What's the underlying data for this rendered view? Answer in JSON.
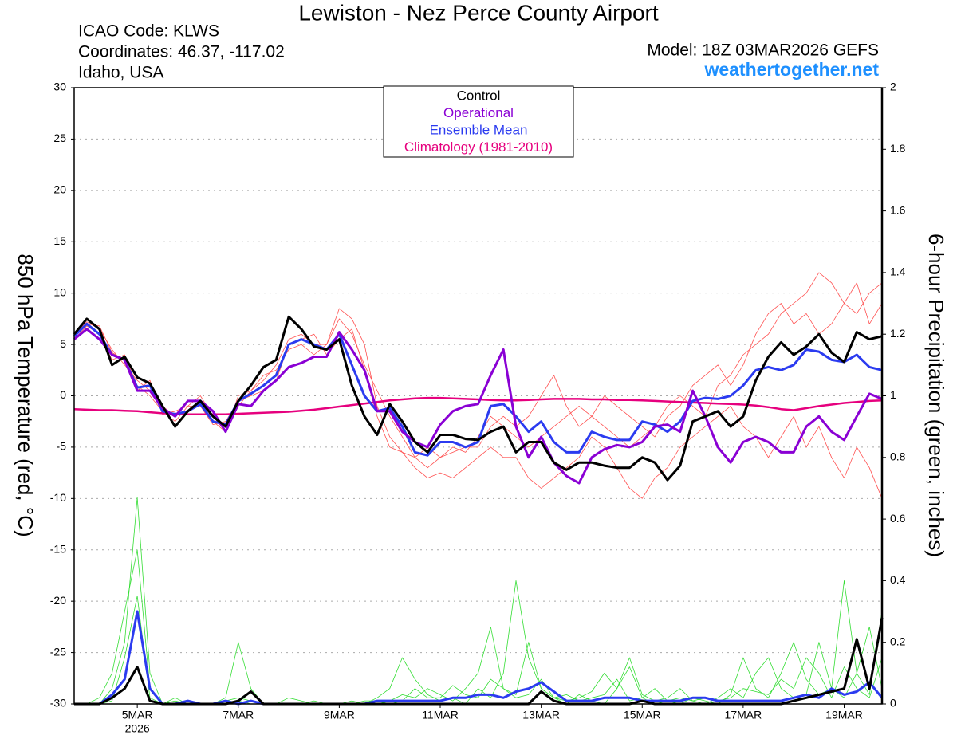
{
  "chart_data": {
    "type": "line",
    "title": "Lewiston - Nez Perce County Airport",
    "info_lines": [
      "ICAO Code: KLWS",
      "Coordinates: 46.37, -117.02",
      "Idaho, USA"
    ],
    "model": "Model: 18Z 03MAR2026 GEFS",
    "website": "weathertogether.net",
    "ylabel": "850 hPa Temperature (red, °C)",
    "y2label": "6-hour Precipitation (green, inches)",
    "year": "2026",
    "categories": [
      null,
      null,
      null,
      null,
      null,
      "5MAR",
      null,
      null,
      null,
      null,
      null,
      null,
      null,
      "7MAR",
      null,
      null,
      null,
      null,
      null,
      null,
      null,
      "9MAR",
      null,
      null,
      null,
      null,
      null,
      null,
      null,
      "11MAR",
      null,
      null,
      null,
      null,
      null,
      null,
      null,
      "13MAR",
      null,
      null,
      null,
      null,
      null,
      null,
      null,
      "15MAR",
      null,
      null,
      null,
      null,
      null,
      null,
      null,
      "17MAR",
      null,
      null,
      null,
      null,
      null,
      null,
      null,
      "19MAR",
      null,
      null,
      null
    ],
    "ylim": [
      -30,
      30
    ],
    "yticks": [
      -30,
      -25,
      -20,
      -15,
      -10,
      -5,
      0,
      5,
      10,
      15,
      20,
      25,
      30
    ],
    "y2lim": [
      0,
      2
    ],
    "y2ticks": [
      0,
      0.2,
      0.4,
      0.6,
      0.8,
      1,
      1.2,
      1.4,
      1.6,
      1.8,
      2
    ],
    "grid": true,
    "legend": "top-center",
    "series": [
      {
        "color": "#ff5050",
        "values": [
          6,
          7.2,
          6.5,
          4.5,
          3,
          1.5,
          0.5,
          -1,
          -2,
          -0.5,
          -0.5,
          -2.5,
          -3.5,
          -1,
          0.5,
          1.5,
          3,
          5.5,
          6,
          5,
          5,
          7.5,
          6,
          3,
          0.5,
          -2,
          -4,
          -6,
          -7,
          -6,
          -5,
          -5.5,
          -4,
          -2,
          -3,
          -4,
          -5,
          -4,
          -3,
          -2,
          -1,
          -2,
          -3,
          -4,
          -5,
          -4,
          -3,
          -1,
          0,
          -1,
          -2,
          1,
          2,
          4,
          5,
          6,
          8,
          9,
          10,
          12,
          11,
          9,
          8,
          10,
          11
        ]
      },
      {
        "color": "#ff5050",
        "values": [
          5.5,
          6.8,
          6,
          3.5,
          4,
          1,
          0,
          -1.5,
          -2.5,
          -1,
          0,
          -2,
          -3.5,
          0,
          0.5,
          2,
          2.5,
          4.5,
          5,
          4,
          5,
          8.5,
          7.5,
          5,
          -1,
          -4,
          -5.5,
          -7,
          -8,
          -7.5,
          -8,
          -7,
          -6,
          -5,
          -6,
          -6,
          -8,
          -9,
          -8,
          -7,
          -6,
          -4,
          -5,
          -7,
          -9,
          -10,
          -8,
          -7,
          -5,
          -4,
          -3,
          -2,
          -1,
          -3,
          -4,
          -6,
          -4,
          -2,
          -5,
          -3,
          -6,
          -8,
          -5,
          -7,
          -10
        ]
      },
      {
        "color": "#ff5050",
        "values": [
          6.2,
          7,
          6.8,
          4.2,
          3.5,
          0.5,
          1.5,
          -1.8,
          -1.5,
          -1,
          -1,
          -2.8,
          -2.5,
          -0.5,
          0,
          0.5,
          1.5,
          5,
          5.5,
          6,
          4,
          5.5,
          6.5,
          2.5,
          -2,
          -5,
          -5.5,
          -6,
          -5,
          -6,
          -5.5,
          -5,
          -5,
          -3,
          -2,
          -3,
          -2,
          0,
          2,
          -1,
          -3,
          -2,
          0,
          -1,
          -2,
          -3,
          -4,
          -2,
          -1,
          1,
          2,
          3,
          1,
          3,
          6,
          8,
          9,
          7,
          8,
          6,
          7,
          9,
          11,
          7,
          9
        ]
      },
      {
        "color": "#33dd33",
        "axis": "y2",
        "values": [
          0,
          0,
          0,
          0.05,
          0.2,
          0.67,
          0.1,
          0,
          0.02,
          0,
          0,
          0,
          0.01,
          0.02,
          0.01,
          0,
          0,
          0,
          0,
          0,
          0,
          0,
          0,
          0,
          0.02,
          0.05,
          0.15,
          0.08,
          0.03,
          0.01,
          0.02,
          0,
          0.05,
          0.02,
          0.1,
          0.4,
          0.15,
          0.05,
          0.02,
          0,
          0.03,
          0.01,
          0,
          0.05,
          0.12,
          0.02,
          0,
          0.01,
          0,
          0.02,
          0.01,
          0,
          0.03,
          0.15,
          0.05,
          0.02,
          0.1,
          0.2,
          0.08,
          0.03,
          0.05,
          0.4,
          0.1,
          0.25,
          0.05
        ]
      },
      {
        "color": "#33dd33",
        "axis": "y2",
        "values": [
          0,
          0,
          0.02,
          0.1,
          0.3,
          0.5,
          0.05,
          0,
          0,
          0.01,
          0,
          0,
          0.02,
          0.2,
          0.05,
          0,
          0,
          0,
          0,
          0.01,
          0,
          0,
          0.01,
          0,
          0,
          0.01,
          0.03,
          0.02,
          0.05,
          0.03,
          0.01,
          0.05,
          0.1,
          0.25,
          0.05,
          0.02,
          0.03,
          0.08,
          0.02,
          0.01,
          0.02,
          0.04,
          0.1,
          0.05,
          0.15,
          0.03,
          0.01,
          0.02,
          0.05,
          0.01,
          0,
          0.02,
          0.05,
          0.02,
          0.1,
          0.15,
          0.05,
          0.02,
          0.03,
          0.2,
          0.05,
          0.02,
          0.1,
          0.03,
          0.3
        ]
      },
      {
        "color": "#33dd33",
        "axis": "y2",
        "values": [
          0,
          0,
          0,
          0.01,
          0.15,
          0.35,
          0.02,
          0,
          0.01,
          0,
          0,
          0,
          0,
          0.01,
          0,
          0,
          0,
          0.02,
          0.01,
          0,
          0,
          0,
          0,
          0.01,
          0.01,
          0,
          0.01,
          0.05,
          0.02,
          0.02,
          0.06,
          0.03,
          0.02,
          0.08,
          0.05,
          0.03,
          0.2,
          0.05,
          0.02,
          0.03,
          0.01,
          0.02,
          0.03,
          0.08,
          0.01,
          0.02,
          0.05,
          0.01,
          0.02,
          0.01,
          0.02,
          0.01,
          0.02,
          0.05,
          0.04,
          0.03,
          0.08,
          0.05,
          0.15,
          0.1,
          0.02,
          0.12,
          0.05,
          0.02,
          0.15
        ]
      },
      {
        "color": "#2b3bf0",
        "axis": "y2",
        "values": [
          0,
          0,
          0,
          0.03,
          0.08,
          0.3,
          0.05,
          0,
          0,
          0.01,
          0,
          0,
          0.01,
          0,
          0.01,
          0,
          0,
          0,
          0,
          0,
          0,
          0,
          0,
          0,
          0.01,
          0.01,
          0.01,
          0.01,
          0.01,
          0.01,
          0.02,
          0.02,
          0.03,
          0.03,
          0.02,
          0.04,
          0.05,
          0.07,
          0.04,
          0.01,
          0.01,
          0.01,
          0.02,
          0.02,
          0.02,
          0.01,
          0.01,
          0.01,
          0.01,
          0.02,
          0.02,
          0.01,
          0.01,
          0.01,
          0.01,
          0.01,
          0.01,
          0.02,
          0.03,
          0.02,
          0.05,
          0.03,
          0.04,
          0.07,
          0.02
        ]
      },
      {
        "color": "#000000",
        "axis": "y2",
        "values": [
          0,
          0,
          0,
          0.02,
          0.05,
          0.12,
          0.01,
          0,
          0,
          0,
          0,
          0,
          0,
          0.01,
          0.04,
          0,
          0,
          0,
          0,
          0,
          0,
          0,
          0,
          0,
          0,
          0,
          0,
          0,
          0,
          0,
          0,
          0,
          0,
          0,
          0,
          0,
          0,
          0.04,
          0.01,
          0,
          0,
          0,
          0,
          0,
          0,
          0.01,
          0,
          0,
          0,
          0,
          0,
          0,
          0,
          0,
          0,
          0,
          0,
          0.01,
          0.02,
          0.03,
          0.04,
          0.05,
          0.21,
          0.05,
          0.28
        ]
      },
      {
        "name": "Control",
        "color": "#000000",
        "values": [
          6,
          7.5,
          6.5,
          3,
          3.8,
          1.8,
          1.2,
          -1,
          -3,
          -1.5,
          -0.5,
          -2,
          -3,
          -0.5,
          1,
          2.8,
          3.5,
          7.7,
          6.5,
          4.8,
          4.5,
          5.5,
          1,
          -2,
          -3.8,
          -0.8,
          -2.5,
          -4.5,
          -5.5,
          -3.8,
          -3.8,
          -4.2,
          -4.3,
          -3.5,
          -3,
          -5.5,
          -4.5,
          -4.5,
          -6.5,
          -7.2,
          -6.5,
          -6.5,
          -6.8,
          -7,
          -7,
          -6,
          -6.5,
          -8.2,
          -6.8,
          -2.5,
          -2,
          -1.5,
          -3,
          -2,
          1.5,
          3.8,
          5.2,
          4,
          4.8,
          6,
          4.2,
          3.3,
          6.2,
          5.5,
          5.8
        ]
      },
      {
        "name": "Operational",
        "color": "#8a00d4",
        "values": [
          5.5,
          6.5,
          5.5,
          4,
          3.5,
          0.5,
          0.5,
          -1.2,
          -2,
          -0.5,
          -0.5,
          -1.5,
          -3.5,
          -0.8,
          -1,
          0.5,
          1.5,
          2.8,
          3.2,
          3.8,
          3.8,
          6.2,
          4.5,
          2.5,
          -1.5,
          -1.5,
          -3.5,
          -4.5,
          -5,
          -2.8,
          -1.5,
          -1,
          -0.8,
          2,
          4.5,
          -3,
          -6,
          -4,
          -6.5,
          -7.8,
          -8.5,
          -6,
          -5.2,
          -4.8,
          -5,
          -4.5,
          -3,
          -2.8,
          -3.5,
          0.5,
          -2,
          -5,
          -6.5,
          -4.5,
          -4,
          -4.5,
          -5.5,
          -5.5,
          -3,
          -2,
          -3.5,
          -4.3,
          -2,
          0.2,
          -0.3
        ]
      },
      {
        "name": "Ensemble Mean",
        "color": "#2b3bf0",
        "values": [
          5.8,
          7,
          6,
          4,
          3.5,
          0.8,
          1,
          -1.5,
          -1.8,
          -1.5,
          -0.8,
          -2.5,
          -2.8,
          -0.5,
          0.2,
          1,
          2,
          5,
          5.5,
          5,
          4.5,
          6,
          3,
          0,
          -1.5,
          -1.2,
          -3,
          -5.5,
          -5.8,
          -4.5,
          -4.5,
          -5,
          -4.5,
          -1,
          -0.8,
          -2,
          -3.5,
          -2.5,
          -4.5,
          -5.5,
          -5.5,
          -3.5,
          -4,
          -4.3,
          -4.3,
          -2.5,
          -2.8,
          -3.5,
          -2.5,
          -0.5,
          -0.2,
          -0.3,
          0,
          1,
          2.5,
          2.8,
          2.5,
          3,
          4.5,
          4.3,
          3.5,
          3.3,
          4,
          2.8,
          2.5
        ]
      },
      {
        "name": "Climatology (1981-2010)",
        "color": "#e6007e",
        "values": [
          -1.3,
          -1.35,
          -1.4,
          -1.4,
          -1.45,
          -1.5,
          -1.6,
          -1.7,
          -1.75,
          -1.8,
          -1.8,
          -1.8,
          -1.8,
          -1.75,
          -1.7,
          -1.65,
          -1.6,
          -1.55,
          -1.45,
          -1.35,
          -1.2,
          -1.05,
          -0.9,
          -0.75,
          -0.6,
          -0.45,
          -0.35,
          -0.25,
          -0.2,
          -0.2,
          -0.25,
          -0.3,
          -0.35,
          -0.4,
          -0.45,
          -0.45,
          -0.4,
          -0.35,
          -0.3,
          -0.3,
          -0.3,
          -0.35,
          -0.35,
          -0.4,
          -0.4,
          -0.45,
          -0.5,
          -0.55,
          -0.6,
          -0.65,
          -0.7,
          -0.75,
          -0.8,
          -0.85,
          -0.95,
          -1.1,
          -1.3,
          -1.4,
          -1.2,
          -1,
          -0.85,
          -0.7,
          -0.6,
          -0.5,
          -0.45
        ]
      }
    ]
  }
}
